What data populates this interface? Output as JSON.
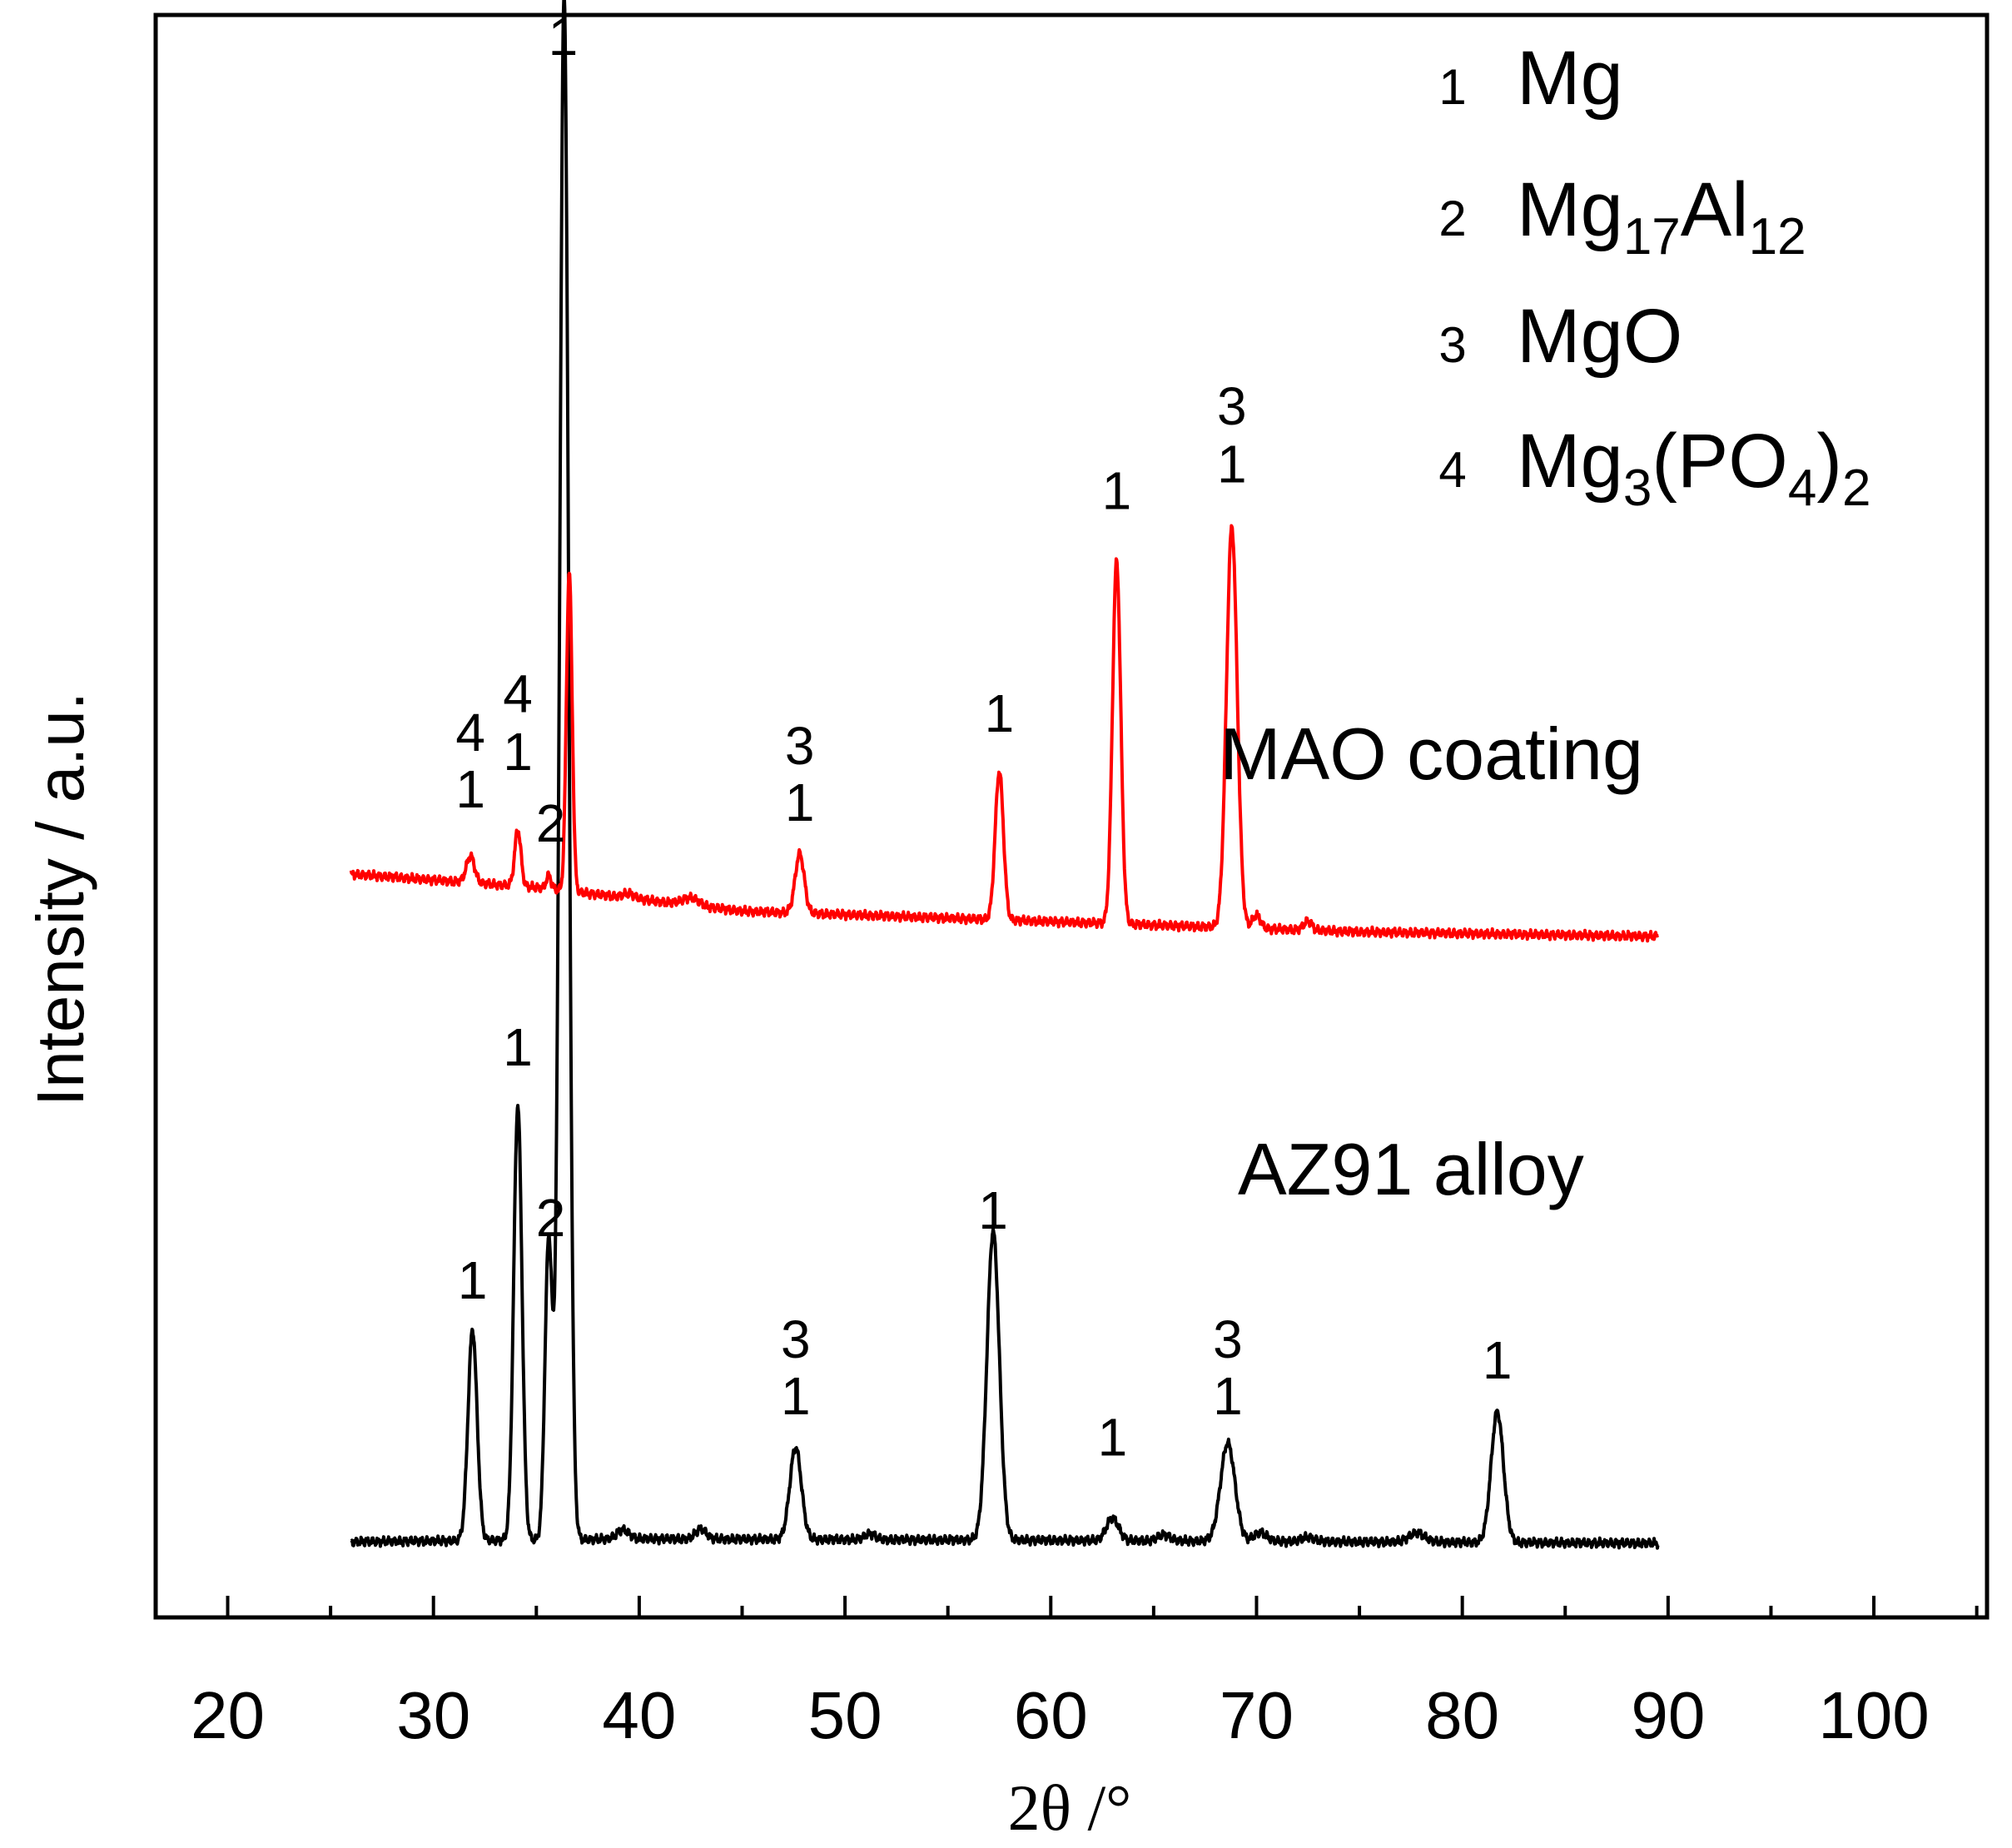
{
  "chart_data": {
    "type": "line",
    "title": "",
    "xlabel": "2θ /°",
    "ylabel": "Intensity / a.u.",
    "xlim": [
      16.5,
      105.5
    ],
    "ylim": [
      0,
      108
    ],
    "xticks": [
      20,
      30,
      40,
      50,
      60,
      70,
      80,
      90,
      100
    ],
    "xtick_labels": [
      "20",
      "30",
      "40",
      "50",
      "60",
      "70",
      "80",
      "90",
      "100"
    ],
    "minor_xticks": [
      25,
      35,
      45,
      55,
      65,
      75,
      85,
      95,
      105
    ],
    "grid": false,
    "legend_position": "top-right",
    "legend": [
      {
        "num": "1",
        "name": "Mg",
        "sub": "",
        "tail": ""
      },
      {
        "num": "2",
        "name": "Mg",
        "sub": "17",
        "tail": "Al",
        "sub2": "12"
      },
      {
        "num": "3",
        "name": "MgO",
        "sub": "",
        "tail": ""
      },
      {
        "num": "4",
        "name": "Mg",
        "sub": "3",
        "tail": "(PO",
        "sub2": "4",
        "tail2": ")",
        "sub3": "2"
      }
    ],
    "series": [
      {
        "name": "MAO coating",
        "color": "#ff0000",
        "label_pos": [
          78.5,
          56.5
        ],
        "x_range": [
          26,
          89.5
        ],
        "baseline": [
          [
            26,
            50.1
          ],
          [
            35,
            49.2
          ],
          [
            45,
            47.6
          ],
          [
            60,
            46.9
          ],
          [
            75,
            46.2
          ],
          [
            89.5,
            45.9
          ]
        ],
        "peaks": [
          {
            "x": 31.8,
            "h": 1.8,
            "w": 0.2
          },
          {
            "x": 34.1,
            "h": 3.8,
            "w": 0.15
          },
          {
            "x": 35.6,
            "h": 0.9,
            "w": 0.12
          },
          {
            "x": 36.6,
            "h": 21.5,
            "w": 0.14
          },
          {
            "x": 39.5,
            "h": 0.3,
            "w": 0.3
          },
          {
            "x": 42.5,
            "h": 0.5,
            "w": 0.4
          },
          {
            "x": 47.8,
            "h": 4.0,
            "w": 0.22
          },
          {
            "x": 57.5,
            "h": 10.0,
            "w": 0.2
          },
          {
            "x": 63.2,
            "h": 24.4,
            "w": 0.2
          },
          {
            "x": 68.8,
            "h": 27.0,
            "w": 0.26
          },
          {
            "x": 70.0,
            "h": 0.9,
            "w": 0.2
          },
          {
            "x": 72.5,
            "h": 0.6,
            "w": 0.2
          }
        ],
        "annotations": [
          {
            "x": 31.8,
            "y": 58.4,
            "label": "4"
          },
          {
            "x": 31.8,
            "y": 54.6,
            "label": "1"
          },
          {
            "x": 34.1,
            "y": 61.0,
            "label": "4"
          },
          {
            "x": 34.1,
            "y": 57.1,
            "label": "1"
          },
          {
            "x": 35.7,
            "y": 52.3,
            "label": "2"
          },
          {
            "x": 47.8,
            "y": 57.5,
            "label": "3"
          },
          {
            "x": 47.8,
            "y": 53.7,
            "label": "1"
          },
          {
            "x": 57.5,
            "y": 59.7,
            "label": "1"
          },
          {
            "x": 63.2,
            "y": 74.7,
            "label": "1"
          },
          {
            "x": 68.8,
            "y": 80.4,
            "label": "3"
          },
          {
            "x": 68.8,
            "y": 76.5,
            "label": "1"
          }
        ]
      },
      {
        "name": "AZ91 alloy",
        "color": "#000000",
        "label_pos": [
          77.5,
          28.5
        ],
        "x_range": [
          26,
          89.5
        ],
        "baseline": [
          [
            26,
            5.1
          ],
          [
            40,
            5.3
          ],
          [
            60,
            5.2
          ],
          [
            89.5,
            5.0
          ]
        ],
        "peaks": [
          {
            "x": 31.9,
            "h": 14.2,
            "w": 0.22
          },
          {
            "x": 34.1,
            "h": 29.3,
            "w": 0.2
          },
          {
            "x": 35.6,
            "h": 20.2,
            "w": 0.18
          },
          {
            "x": 36.35,
            "h": 104.0,
            "w": 0.22
          },
          {
            "x": 39.2,
            "h": 0.6,
            "w": 0.3
          },
          {
            "x": 43.0,
            "h": 0.7,
            "w": 0.25
          },
          {
            "x": 47.6,
            "h": 6.2,
            "w": 0.28
          },
          {
            "x": 51.2,
            "h": 0.4,
            "w": 0.25
          },
          {
            "x": 57.2,
            "h": 20.8,
            "w": 0.3
          },
          {
            "x": 63.0,
            "h": 1.5,
            "w": 0.3
          },
          {
            "x": 65.5,
            "h": 0.4,
            "w": 0.3
          },
          {
            "x": 68.6,
            "h": 6.6,
            "w": 0.35
          },
          {
            "x": 70.2,
            "h": 0.6,
            "w": 0.3
          },
          {
            "x": 72.5,
            "h": 0.3,
            "w": 0.3
          },
          {
            "x": 77.8,
            "h": 0.6,
            "w": 0.4
          },
          {
            "x": 81.7,
            "h": 8.8,
            "w": 0.3
          }
        ],
        "annotations": [
          {
            "x": 36.3,
            "y": 105.3,
            "label": "1"
          },
          {
            "x": 31.9,
            "y": 21.5,
            "label": "1"
          },
          {
            "x": 34.1,
            "y": 37.2,
            "label": "1"
          },
          {
            "x": 35.7,
            "y": 25.7,
            "label": "2"
          },
          {
            "x": 47.6,
            "y": 17.5,
            "label": "3"
          },
          {
            "x": 47.6,
            "y": 13.7,
            "label": "1"
          },
          {
            "x": 57.2,
            "y": 26.2,
            "label": "1"
          },
          {
            "x": 63.0,
            "y": 10.9,
            "label": "1"
          },
          {
            "x": 68.6,
            "y": 17.5,
            "label": "3"
          },
          {
            "x": 68.6,
            "y": 13.7,
            "label": "1"
          },
          {
            "x": 81.7,
            "y": 16.1,
            "label": "1"
          }
        ]
      }
    ]
  }
}
